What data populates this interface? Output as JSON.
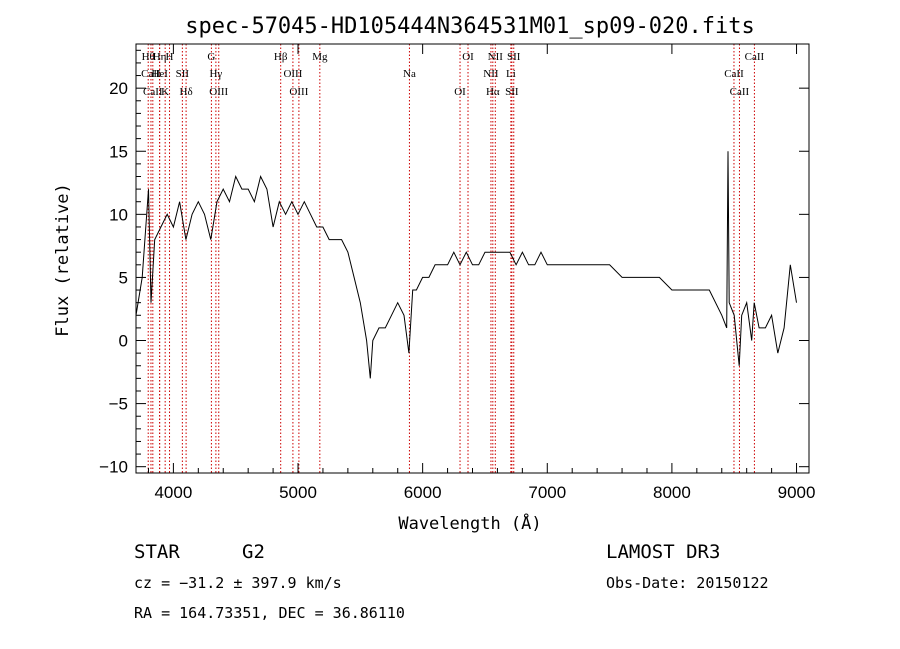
{
  "chart_data": {
    "type": "line",
    "title": "spec-57045-HD105444N364531M01_sp09-020.fits",
    "xlabel": "Wavelength (Å)",
    "ylabel": "Flux (relative)",
    "xlim": [
      3700,
      9100
    ],
    "ylim": [
      -10.5,
      23.5
    ],
    "x_ticks": [
      4000,
      5000,
      6000,
      7000,
      8000,
      9000
    ],
    "x_tick_labels": [
      "4000",
      "5000",
      "6000",
      "7000",
      "8000",
      "9000"
    ],
    "y_ticks": [
      -10,
      -5,
      0,
      5,
      10,
      15,
      20
    ],
    "y_tick_labels": [
      "−10",
      "−5",
      "0",
      "5",
      "10",
      "15",
      "20"
    ],
    "grid": false,
    "spectrum": {
      "name": "flux",
      "x": [
        3700,
        3750,
        3800,
        3820,
        3850,
        3900,
        3950,
        4000,
        4050,
        4100,
        4150,
        4200,
        4250,
        4300,
        4350,
        4400,
        4450,
        4500,
        4550,
        4600,
        4650,
        4700,
        4750,
        4800,
        4850,
        4900,
        4950,
        5000,
        5050,
        5100,
        5150,
        5200,
        5250,
        5300,
        5350,
        5400,
        5450,
        5500,
        5550,
        5580,
        5600,
        5650,
        5700,
        5750,
        5800,
        5850,
        5890,
        5920,
        5950,
        6000,
        6050,
        6100,
        6150,
        6200,
        6250,
        6300,
        6350,
        6400,
        6450,
        6500,
        6550,
        6600,
        6650,
        6700,
        6750,
        6800,
        6850,
        6900,
        6950,
        7000,
        7050,
        7100,
        7150,
        7200,
        7300,
        7400,
        7500,
        7600,
        7700,
        7800,
        7900,
        8000,
        8100,
        8200,
        8300,
        8400,
        8440,
        8450,
        8460,
        8500,
        8540,
        8560,
        8600,
        8640,
        8660,
        8700,
        8750,
        8800,
        8850,
        8900,
        8950,
        9000
      ],
      "values": [
        2,
        5,
        12,
        3,
        8,
        9,
        10,
        9,
        11,
        8,
        10,
        11,
        10,
        8,
        11,
        12,
        11,
        13,
        12,
        12,
        11,
        13,
        12,
        9,
        11,
        10,
        11,
        10,
        11,
        10,
        9,
        9,
        8,
        8,
        8,
        7,
        5,
        3,
        0,
        -3,
        0,
        1,
        1,
        2,
        3,
        2,
        -1,
        4,
        4,
        5,
        5,
        6,
        6,
        6,
        7,
        6,
        7,
        6,
        6,
        7,
        7,
        7,
        7,
        7,
        6,
        7,
        6,
        6,
        7,
        6,
        6,
        6,
        6,
        6,
        6,
        6,
        6,
        5,
        5,
        5,
        5,
        4,
        4,
        4,
        4,
        2,
        1,
        15,
        3,
        2,
        -2,
        2,
        3,
        0,
        3,
        1,
        1,
        2,
        -1,
        1,
        6,
        3
      ]
    },
    "line_markers": [
      {
        "label": "Hθ",
        "x": 3798
      },
      {
        "label": "CaII",
        "x": 3820
      },
      {
        "label": "CaII",
        "x": 3835
      },
      {
        "label": "Hη",
        "x": 3889
      },
      {
        "label": "HeI",
        "x": 3890
      },
      {
        "label": "K",
        "x": 3934
      },
      {
        "label": "H",
        "x": 3969
      },
      {
        "label": "SII",
        "x": 4072
      },
      {
        "label": "Hδ",
        "x": 4102
      },
      {
        "label": "G",
        "x": 4305
      },
      {
        "label": "Hγ",
        "x": 4341
      },
      {
        "label": "OIII",
        "x": 4364
      },
      {
        "label": "Hβ",
        "x": 4861
      },
      {
        "label": "OIII",
        "x": 4959
      },
      {
        "label": "OIII",
        "x": 5007
      },
      {
        "label": "Mg",
        "x": 5175
      },
      {
        "label": "Na",
        "x": 5894
      },
      {
        "label": "OI",
        "x": 6300
      },
      {
        "label": "OI",
        "x": 6364
      },
      {
        "label": "NII",
        "x": 6548
      },
      {
        "label": "Hα",
        "x": 6563
      },
      {
        "label": "NII",
        "x": 6583
      },
      {
        "label": "Li",
        "x": 6708
      },
      {
        "label": "SII",
        "x": 6716
      },
      {
        "label": "SII",
        "x": 6731
      },
      {
        "label": "CaII",
        "x": 8498
      },
      {
        "label": "CaII",
        "x": 8542
      },
      {
        "label": "CaII",
        "x": 8662
      }
    ]
  },
  "footer": {
    "object_class": "STAR",
    "subclass": "G2",
    "redshift": "cz = −31.2 ± 397.9 km/s",
    "coordinates": "RA = 164.73351, DEC =  36.86110",
    "survey": "LAMOST DR3",
    "obs_date": "Obs-Date: 20150122"
  },
  "colors": {
    "axis": "#000000",
    "line": "#000000",
    "marker": "#cc0000"
  }
}
